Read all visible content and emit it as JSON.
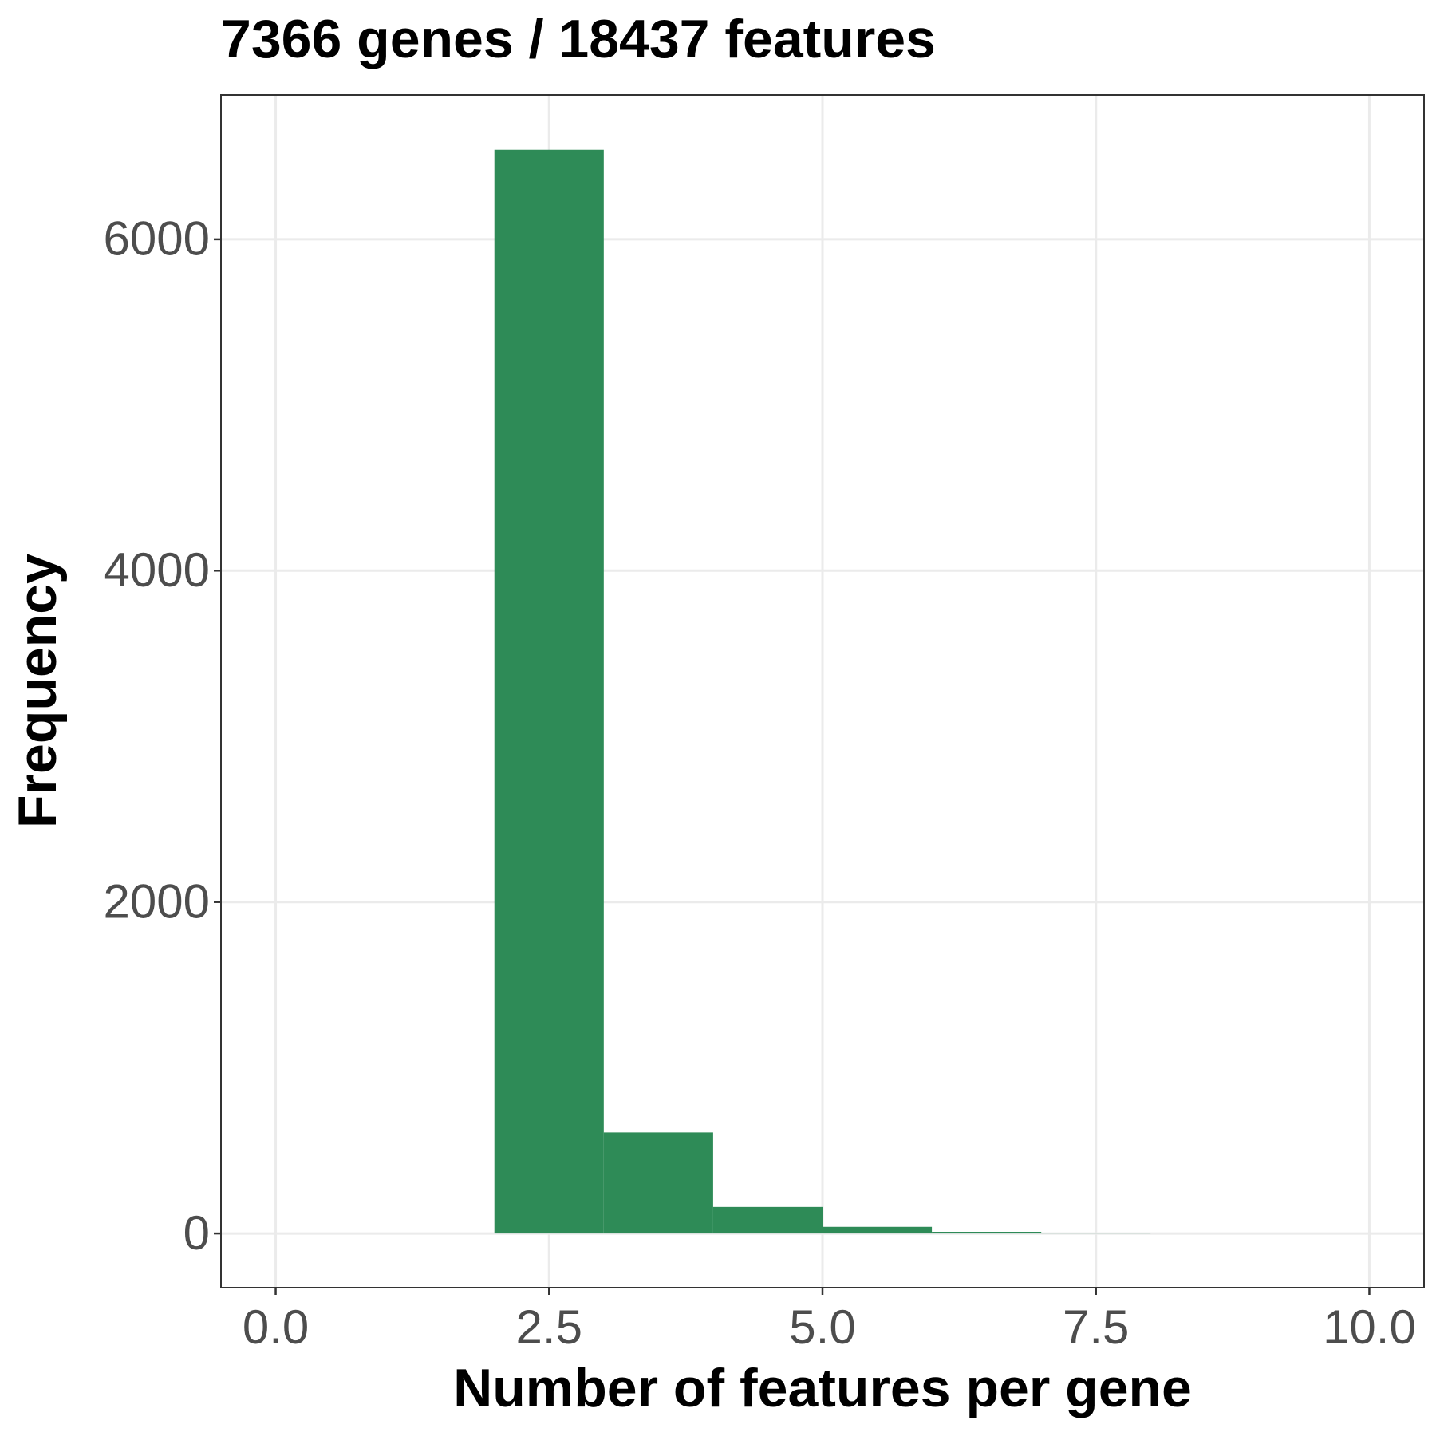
{
  "chart_data": {
    "type": "histogram",
    "title": "7366 genes / 18437 features",
    "x_label": "Number of features per gene",
    "y_label": "Frequency",
    "bins": [
      2,
      3,
      4,
      5,
      6,
      7,
      8
    ],
    "values": [
      6540,
      610,
      160,
      40,
      10,
      3
    ],
    "color": "#2e8b57",
    "xlim": [
      -0.5,
      10.5
    ],
    "xticks": [
      {
        "value": 0,
        "label": "0.0"
      },
      2.5,
      {
        "value": 5,
        "label": "5.0"
      },
      7.5,
      {
        "value": 10,
        "label": "10.0"
      }
    ],
    "ylim": [
      -327,
      6871
    ],
    "yticks": [
      0,
      2000,
      4000,
      6000
    ],
    "grid": true
  }
}
